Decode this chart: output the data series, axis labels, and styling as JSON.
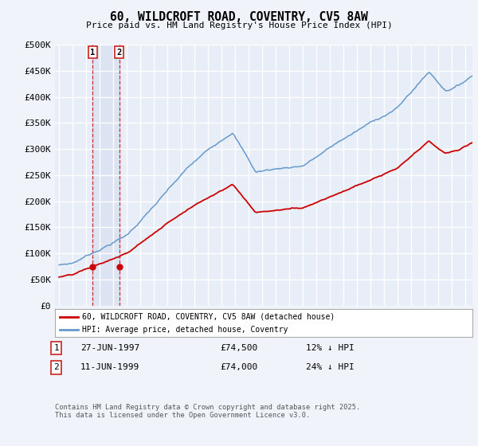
{
  "title": "60, WILDCROFT ROAD, COVENTRY, CV5 8AW",
  "subtitle": "Price paid vs. HM Land Registry's House Price Index (HPI)",
  "ylim": [
    0,
    500000
  ],
  "yticks": [
    0,
    50000,
    100000,
    150000,
    200000,
    250000,
    300000,
    350000,
    400000,
    450000,
    500000
  ],
  "ytick_labels": [
    "£0",
    "£50K",
    "£100K",
    "£150K",
    "£200K",
    "£250K",
    "£300K",
    "£350K",
    "£400K",
    "£450K",
    "£500K"
  ],
  "background_color": "#f0f4fa",
  "plot_bg_color": "#e8eef8",
  "grid_color": "#ffffff",
  "hpi_color": "#6699cc",
  "price_color": "#cc0000",
  "annotation1_date": "27-JUN-1997",
  "annotation1_price": "£74,500",
  "annotation1_hpi": "12% ↓ HPI",
  "annotation2_date": "11-JUN-1999",
  "annotation2_price": "£74,000",
  "annotation2_hpi": "24% ↓ HPI",
  "legend_label1": "60, WILDCROFT ROAD, COVENTRY, CV5 8AW (detached house)",
  "legend_label2": "HPI: Average price, detached house, Coventry",
  "footer": "Contains HM Land Registry data © Crown copyright and database right 2025.\nThis data is licensed under the Open Government Licence v3.0.",
  "sale1_x": 1997.49,
  "sale1_y": 74500,
  "sale2_x": 1999.44,
  "sale2_y": 74000,
  "xmin": 1995.0,
  "xmax": 2025.5
}
